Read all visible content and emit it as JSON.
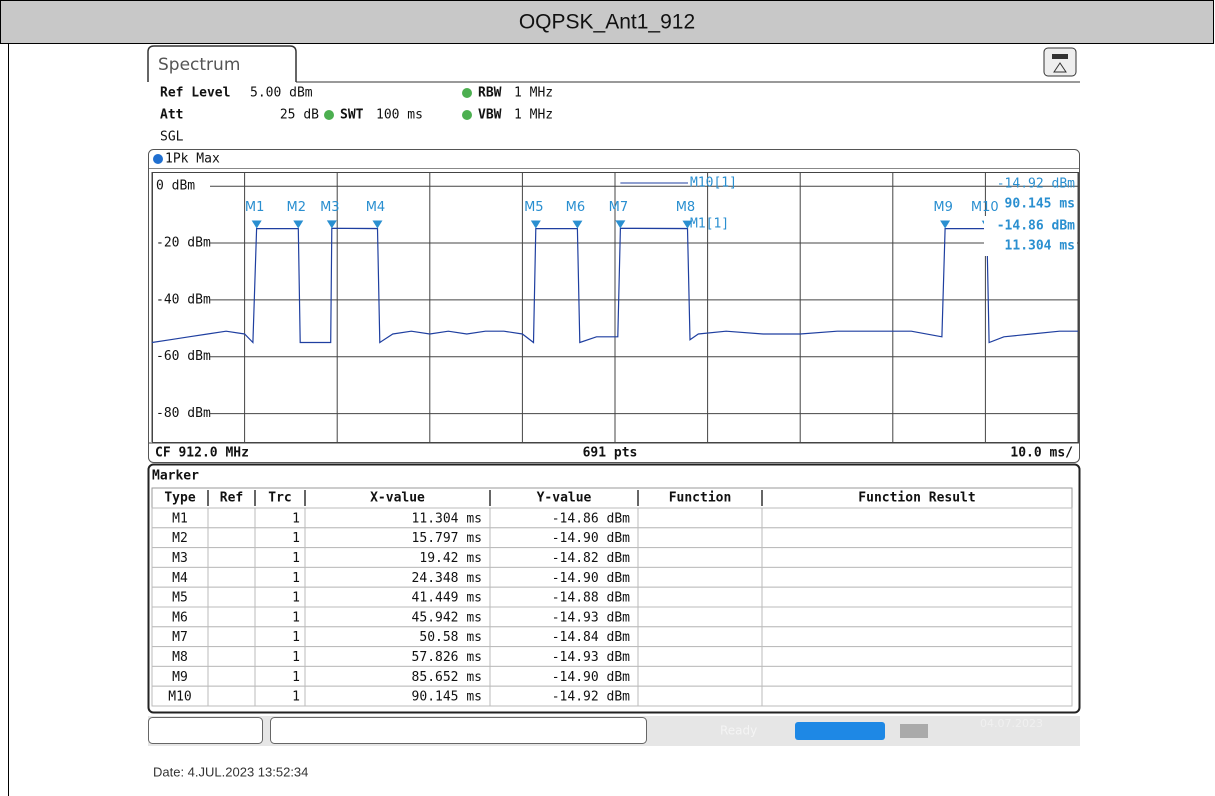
{
  "header": {
    "title": "OQPSK_Ant1_912"
  },
  "tab": "Spectrum",
  "settings": {
    "ref_level_label": "Ref Level",
    "ref_level": "5.00 dBm",
    "att_label": "Att",
    "att": "25 dB",
    "swt_label": "SWT",
    "swt": "100 ms",
    "rbw_label": "RBW",
    "rbw": "1 MHz",
    "vbw_label": "VBW",
    "vbw": "1 MHz",
    "mode": "SGL"
  },
  "chart_data": {
    "type": "line",
    "xlim": [
      0,
      100
    ],
    "ylim": [
      5,
      -90
    ],
    "xticks": [
      0,
      10,
      20,
      30,
      40,
      50,
      60,
      70,
      80,
      90,
      100
    ],
    "yticks": [
      {
        "value": 0,
        "label": "0 dBm"
      },
      {
        "value": -20,
        "label": "-20 dBm"
      },
      {
        "value": -40,
        "label": "-40 dBm"
      },
      {
        "value": -60,
        "label": "-60 dBm"
      },
      {
        "value": -80,
        "label": "-80 dBm"
      }
    ],
    "x": [
      0,
      2,
      4,
      6,
      8,
      10,
      10.9,
      11.3,
      15.8,
      16.0,
      18,
      19.3,
      19.42,
      24.35,
      24.6,
      26,
      28,
      30,
      32,
      34,
      36,
      38,
      40,
      41.2,
      41.45,
      45.94,
      46.2,
      48,
      50.3,
      50.58,
      57.83,
      58.1,
      59,
      62,
      66,
      70,
      74,
      78,
      82,
      85.3,
      85.65,
      90.15,
      90.4,
      92,
      95,
      98,
      100
    ],
    "series": [
      {
        "name": "1Pk Max",
        "color": "#1f3fa0",
        "values": [
          -55,
          -54,
          -53,
          -52,
          -51,
          -52,
          -55,
          -14.9,
          -14.9,
          -55,
          -55,
          -55,
          -14.8,
          -14.9,
          -55,
          -52,
          -51,
          -52,
          -51,
          -52,
          -51,
          -51,
          -52,
          -55,
          -14.9,
          -14.9,
          -55,
          -53,
          -53,
          -14.8,
          -14.9,
          -54,
          -52,
          -51,
          -52,
          -52,
          -51,
          -51,
          -51,
          -53,
          -14.9,
          -14.9,
          -55,
          -53,
          -52,
          -51,
          -51
        ]
      }
    ],
    "markers": [
      {
        "name": "M1",
        "x": 11.304,
        "y": -14.86
      },
      {
        "name": "M2",
        "x": 15.797,
        "y": -14.9
      },
      {
        "name": "M3",
        "x": 19.42,
        "y": -14.82
      },
      {
        "name": "M4",
        "x": 24.348,
        "y": -14.9
      },
      {
        "name": "M5",
        "x": 41.449,
        "y": -14.88
      },
      {
        "name": "M6",
        "x": 45.942,
        "y": -14.93
      },
      {
        "name": "M7",
        "x": 50.58,
        "y": -14.84
      },
      {
        "name": "M8",
        "x": 57.826,
        "y": -14.93
      },
      {
        "name": "M9",
        "x": 85.652,
        "y": -14.9
      },
      {
        "name": "M10",
        "x": 90.145,
        "y": -14.92
      }
    ],
    "readouts": [
      "M10[1]",
      "-14.92 dBm",
      "90.145 ms",
      "M1[1]",
      "-14.86 dBm",
      "11.304 ms"
    ],
    "footer": {
      "center_freq": "CF 912.0 MHz",
      "points": "691 pts",
      "scale": "10.0 ms/"
    }
  },
  "marker_table": {
    "title": "Marker",
    "columns": [
      "Type",
      "Ref",
      "Trc",
      "X-value",
      "Y-value",
      "Function",
      "Function Result"
    ],
    "rows": [
      [
        "M1",
        "",
        "1",
        "11.304 ms",
        "-14.86 dBm"
      ],
      [
        "M2",
        "",
        "1",
        "15.797 ms",
        "-14.90 dBm"
      ],
      [
        "M3",
        "",
        "1",
        "19.42 ms",
        "-14.82 dBm"
      ],
      [
        "M4",
        "",
        "1",
        "24.348 ms",
        "-14.90 dBm"
      ],
      [
        "M5",
        "",
        "1",
        "41.449 ms",
        "-14.88 dBm"
      ],
      [
        "M6",
        "",
        "1",
        "45.942 ms",
        "-14.93 dBm"
      ],
      [
        "M7",
        "",
        "1",
        "50.58 ms",
        "-14.84 dBm"
      ],
      [
        "M8",
        "",
        "1",
        "57.826 ms",
        "-14.93 dBm"
      ],
      [
        "M9",
        "",
        "1",
        "85.652 ms",
        "-14.90 dBm"
      ],
      [
        "M10",
        "",
        "1",
        "90.145 ms",
        "-14.92 dBm"
      ]
    ]
  },
  "status": {
    "state": "Ready",
    "date": "04.07.2023"
  },
  "date_line": "Date: 4.JUL.2023 13:52:34"
}
